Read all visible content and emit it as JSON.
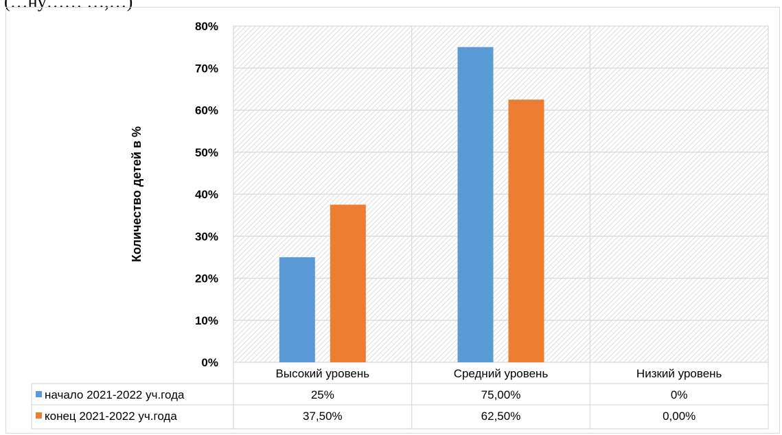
{
  "header_fragment": "(…ну…… …,…)",
  "chart_data": {
    "type": "bar",
    "categories": [
      "Высокий уровень",
      "Средний уровень",
      "Низкий уровень"
    ],
    "series": [
      {
        "name": "начало 2021-2022 уч.года",
        "values": [
          25,
          75,
          0
        ],
        "labels": [
          "25%",
          "75,00%",
          "0%"
        ],
        "color": "#5b9bd5"
      },
      {
        "name": "конец 2021-2022 уч.года",
        "values": [
          37.5,
          62.5,
          0
        ],
        "labels": [
          "37,50%",
          "62,50%",
          "0,00%"
        ],
        "color": "#ed7d31"
      }
    ],
    "ylabel": "Количество детей в %",
    "xlabel": "",
    "ylim": [
      0,
      80
    ],
    "yticks": [
      0,
      10,
      20,
      30,
      40,
      50,
      60,
      70,
      80
    ],
    "ytick_labels": [
      "0%",
      "10%",
      "20%",
      "30%",
      "40%",
      "50%",
      "60%",
      "70%",
      "80%"
    ],
    "grid": true,
    "legend": "data-table-bottom"
  }
}
